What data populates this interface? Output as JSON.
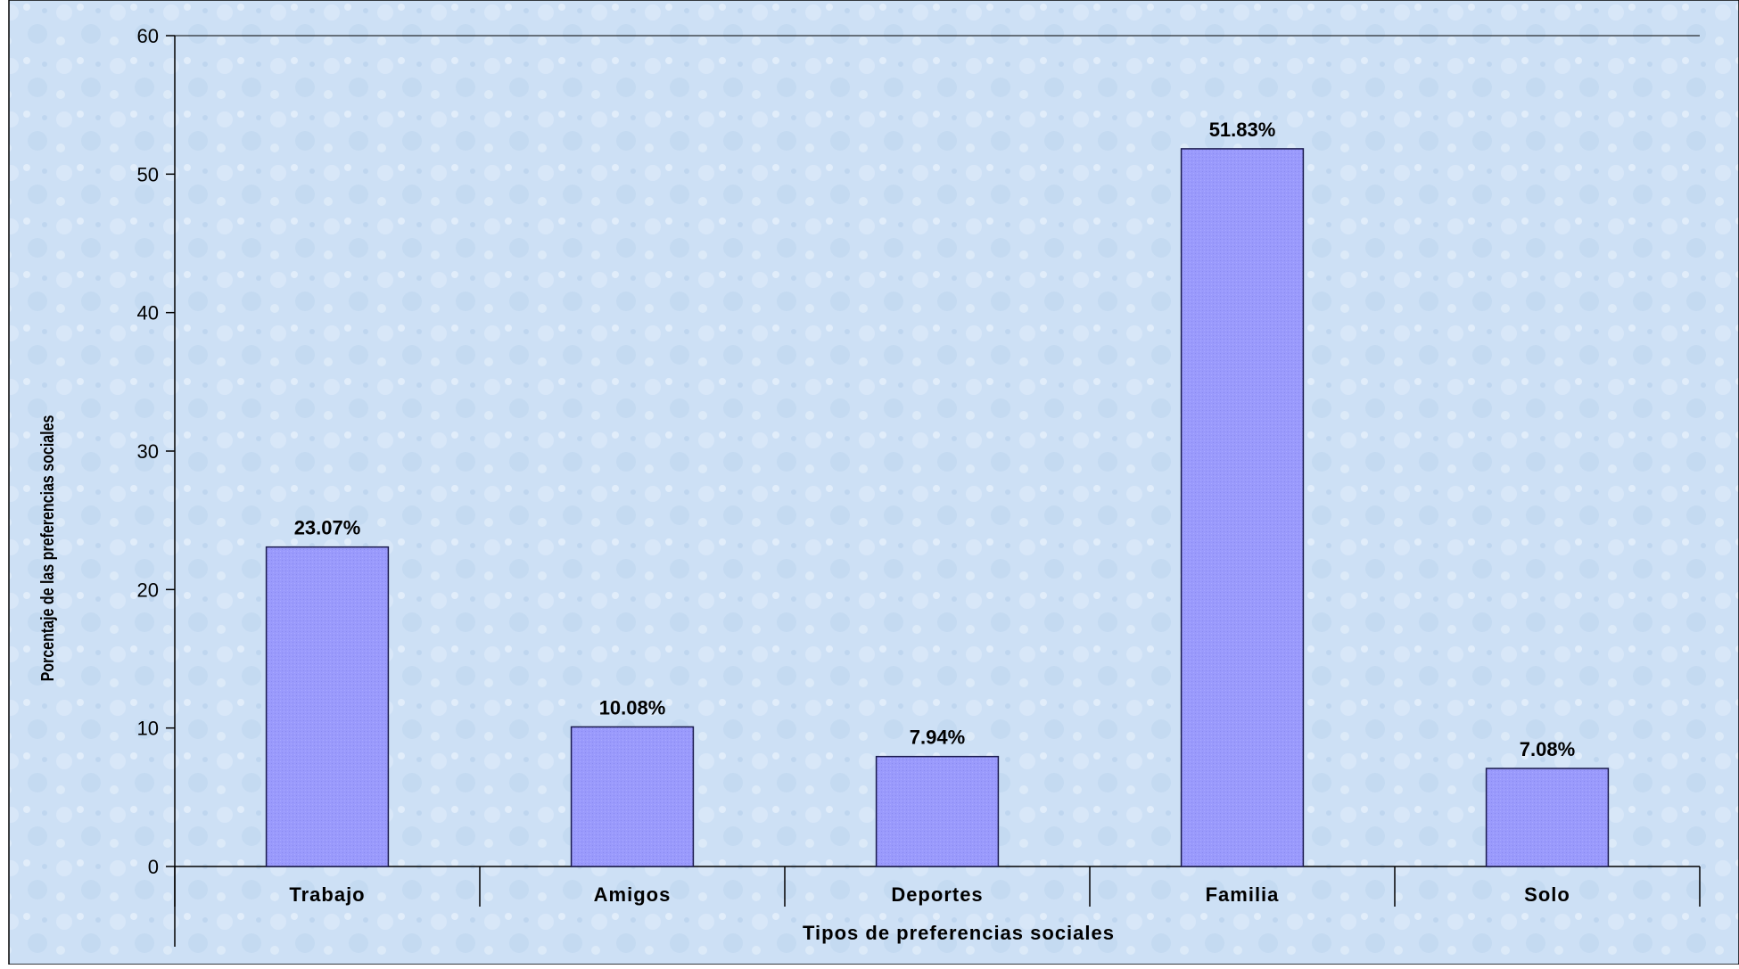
{
  "chart_data": {
    "type": "bar",
    "categories": [
      "Trabajo",
      "Amigos",
      "Deportes",
      "Familia",
      "Solo"
    ],
    "values": [
      23.07,
      10.08,
      7.94,
      51.83,
      7.08
    ],
    "data_labels": [
      "23.07%",
      "10.08%",
      "7.94%",
      "51.83%",
      "7.08%"
    ],
    "xlabel": "Tipos de preferencias sociales",
    "ylabel": "Porcentaje de las preferencias sociales",
    "ylim": [
      0,
      60
    ],
    "yticks": [
      0,
      10,
      20,
      30,
      40,
      50,
      60
    ],
    "grid": false,
    "legend": "none",
    "colors": {
      "bar_fill": "#9999ff",
      "bar_stroke": "#1a1a4d",
      "plot_background": "#cfe2f6",
      "axis": "#000000"
    }
  }
}
